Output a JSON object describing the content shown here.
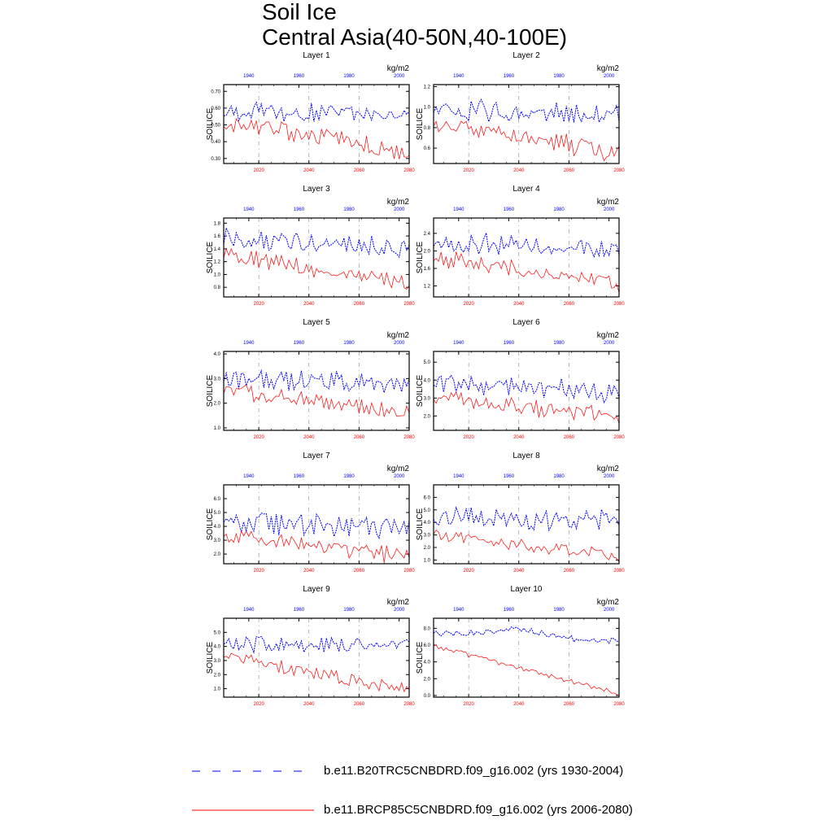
{
  "figure": {
    "title_line1": "Soil Ice",
    "title_line2": "Central Asia(40-50N,40-100E)"
  },
  "legend": [
    {
      "label": "b.e11.B20TRC5CNBDRD.f09_g16.002 (yrs 1930-2004)",
      "color": "#0000ff",
      "style": "dashed"
    },
    {
      "label": "b.e11.BRCP85C5CNBDRD.f09_g16.002 (yrs 2006-2080)",
      "color": "#ff0000",
      "style": "solid"
    }
  ],
  "colors": {
    "historical": "#0000ff",
    "future": "#ff0000",
    "refline": "#888888"
  },
  "chart_data": [
    {
      "type": "line",
      "title": "Layer 1",
      "ylabel": "SOILICE",
      "units": "kg/m2",
      "ylim": [
        0.27,
        0.74
      ],
      "yticks": [
        "0.30",
        "0.40",
        "0.50",
        "0.60",
        "0.70"
      ],
      "top_axis_label_years": [
        "1940",
        "1960",
        "1980",
        "2000"
      ],
      "top_axis_xlim": [
        1930,
        2004
      ],
      "bottom_axis_label_years": [
        "2020",
        "2040",
        "2060",
        "2080"
      ],
      "bottom_axis_xlim": [
        2006,
        2080
      ],
      "series": [
        {
          "name": "b.e11.B20TRC5CNBDRD.f09_g16.002",
          "start": 1930,
          "end": 2004,
          "level_start": 0.58,
          "level_end": 0.56,
          "variability": 0.05
        },
        {
          "name": "b.e11.BRCP85C5CNBDRD.f09_g16.002",
          "start": 2006,
          "end": 2080,
          "level_start": 0.52,
          "level_end": 0.34,
          "variability": 0.05
        }
      ]
    },
    {
      "type": "line",
      "title": "Layer 2",
      "ylabel": "SOILICE",
      "units": "kg/m2",
      "ylim": [
        0.45,
        1.22
      ],
      "yticks": [
        "0.6",
        "0.8",
        "1.0",
        "1.2"
      ],
      "top_axis_label_years": [
        "1940",
        "1960",
        "1980",
        "2000"
      ],
      "top_axis_xlim": [
        1930,
        2004
      ],
      "bottom_axis_label_years": [
        "2020",
        "2040",
        "2060",
        "2080"
      ],
      "bottom_axis_xlim": [
        2006,
        2080
      ],
      "series": [
        {
          "name": "b.e11.B20TRC5CNBDRD.f09_g16.002",
          "start": 1930,
          "end": 2004,
          "level_start": 0.98,
          "level_end": 0.92,
          "variability": 0.09
        },
        {
          "name": "b.e11.BRCP85C5CNBDRD.f09_g16.002",
          "start": 2006,
          "end": 2080,
          "level_start": 0.85,
          "level_end": 0.55,
          "variability": 0.08
        }
      ]
    },
    {
      "type": "line",
      "title": "Layer 3",
      "ylabel": "SOILICE",
      "units": "kg/m2",
      "ylim": [
        0.65,
        1.88
      ],
      "yticks": [
        "0.8",
        "1.0",
        "1.2",
        "1.4",
        "1.6",
        "1.8"
      ],
      "top_axis_label_years": [
        "1940",
        "1960",
        "1980",
        "2000"
      ],
      "top_axis_xlim": [
        1930,
        2004
      ],
      "bottom_axis_label_years": [
        "2020",
        "2040",
        "2060",
        "2080"
      ],
      "bottom_axis_xlim": [
        2006,
        2080
      ],
      "series": [
        {
          "name": "b.e11.B20TRC5CNBDRD.f09_g16.002",
          "start": 1930,
          "end": 2004,
          "level_start": 1.55,
          "level_end": 1.42,
          "variability": 0.14
        },
        {
          "name": "b.e11.BRCP85C5CNBDRD.f09_g16.002",
          "start": 2006,
          "end": 2080,
          "level_start": 1.3,
          "level_end": 0.85,
          "variability": 0.12
        }
      ]
    },
    {
      "type": "line",
      "title": "Layer 4",
      "ylabel": "SOILICE",
      "units": "kg/m2",
      "ylim": [
        0.95,
        2.75
      ],
      "yticks": [
        "1.2",
        "1.6",
        "2.0",
        "2.4"
      ],
      "top_axis_label_years": [
        "1940",
        "1960",
        "1980",
        "2000"
      ],
      "top_axis_xlim": [
        1930,
        2004
      ],
      "bottom_axis_label_years": [
        "2020",
        "2040",
        "2060",
        "2080"
      ],
      "bottom_axis_xlim": [
        2006,
        2080
      ],
      "series": [
        {
          "name": "b.e11.B20TRC5CNBDRD.f09_g16.002",
          "start": 1930,
          "end": 2004,
          "level_start": 2.2,
          "level_end": 2.0,
          "variability": 0.2
        },
        {
          "name": "b.e11.BRCP85C5CNBDRD.f09_g16.002",
          "start": 2006,
          "end": 2080,
          "level_start": 1.85,
          "level_end": 1.25,
          "variability": 0.16
        }
      ]
    },
    {
      "type": "line",
      "title": "Layer 5",
      "ylabel": "SOILICE",
      "units": "kg/m2",
      "ylim": [
        0.9,
        4.1
      ],
      "yticks": [
        "1.0",
        "2.0",
        "3.0",
        "4.0"
      ],
      "top_axis_label_years": [
        "1940",
        "1960",
        "1980",
        "2000"
      ],
      "top_axis_xlim": [
        1930,
        2004
      ],
      "bottom_axis_label_years": [
        "2020",
        "2040",
        "2060",
        "2080"
      ],
      "bottom_axis_xlim": [
        2006,
        2080
      ],
      "series": [
        {
          "name": "b.e11.B20TRC5CNBDRD.f09_g16.002",
          "start": 1930,
          "end": 2004,
          "level_start": 3.0,
          "level_end": 2.8,
          "variability": 0.35
        },
        {
          "name": "b.e11.BRCP85C5CNBDRD.f09_g16.002",
          "start": 2006,
          "end": 2080,
          "level_start": 2.5,
          "level_end": 1.6,
          "variability": 0.3
        }
      ]
    },
    {
      "type": "line",
      "title": "Layer 6",
      "ylabel": "SOILICE",
      "units": "kg/m2",
      "ylim": [
        1.2,
        5.6
      ],
      "yticks": [
        "2.0",
        "3.0",
        "4.0",
        "5.0"
      ],
      "top_axis_label_years": [
        "1940",
        "1960",
        "1980",
        "2000"
      ],
      "top_axis_xlim": [
        1930,
        2004
      ],
      "bottom_axis_label_years": [
        "2020",
        "2040",
        "2060",
        "2080"
      ],
      "bottom_axis_xlim": [
        2006,
        2080
      ],
      "series": [
        {
          "name": "b.e11.B20TRC5CNBDRD.f09_g16.002",
          "start": 1930,
          "end": 2004,
          "level_start": 3.8,
          "level_end": 3.3,
          "variability": 0.5
        },
        {
          "name": "b.e11.BRCP85C5CNBDRD.f09_g16.002",
          "start": 2006,
          "end": 2080,
          "level_start": 3.0,
          "level_end": 2.0,
          "variability": 0.4
        }
      ]
    },
    {
      "type": "line",
      "title": "Layer 7",
      "ylabel": "SOILICE",
      "units": "kg/m2",
      "ylim": [
        1.3,
        7.0
      ],
      "yticks": [
        "2.0",
        "3.0",
        "4.0",
        "5.0",
        "6.0"
      ],
      "top_axis_label_years": [
        "1940",
        "1960",
        "1980",
        "2000"
      ],
      "top_axis_xlim": [
        1930,
        2004
      ],
      "bottom_axis_label_years": [
        "2020",
        "2040",
        "2060",
        "2080"
      ],
      "bottom_axis_xlim": [
        2006,
        2080
      ],
      "series": [
        {
          "name": "b.e11.B20TRC5CNBDRD.f09_g16.002",
          "start": 1930,
          "end": 2004,
          "level_start": 4.3,
          "level_end": 3.9,
          "variability": 0.7
        },
        {
          "name": "b.e11.BRCP85C5CNBDRD.f09_g16.002",
          "start": 2006,
          "end": 2080,
          "level_start": 3.3,
          "level_end": 1.8,
          "variability": 0.5
        }
      ]
    },
    {
      "type": "line",
      "title": "Layer 8",
      "ylabel": "SOILICE",
      "units": "kg/m2",
      "ylim": [
        0.7,
        7.0
      ],
      "yticks": [
        "1.0",
        "2.0",
        "3.0",
        "4.0",
        "5.0",
        "6.0"
      ],
      "top_axis_label_years": [
        "1940",
        "1960",
        "1980",
        "2000"
      ],
      "top_axis_xlim": [
        1930,
        2004
      ],
      "bottom_axis_label_years": [
        "2020",
        "2040",
        "2060",
        "2080"
      ],
      "bottom_axis_xlim": [
        2006,
        2080
      ],
      "series": [
        {
          "name": "b.e11.B20TRC5CNBDRD.f09_g16.002",
          "start": 1930,
          "end": 2004,
          "level_start": 4.4,
          "level_end": 4.0,
          "variability": 0.8
        },
        {
          "name": "b.e11.BRCP85C5CNBDRD.f09_g16.002",
          "start": 2006,
          "end": 2080,
          "level_start": 3.0,
          "level_end": 1.3,
          "variability": 0.4
        }
      ]
    },
    {
      "type": "line",
      "title": "Layer 9",
      "ylabel": "SOILICE",
      "units": "kg/m2",
      "ylim": [
        0.4,
        6.0
      ],
      "yticks": [
        "1.0",
        "2.0",
        "3.0",
        "4.0",
        "5.0"
      ],
      "top_axis_label_years": [
        "1940",
        "1960",
        "1980",
        "2000"
      ],
      "top_axis_xlim": [
        1930,
        2004
      ],
      "bottom_axis_label_years": [
        "2020",
        "2040",
        "2060",
        "2080"
      ],
      "bottom_axis_xlim": [
        2006,
        2080
      ],
      "series": [
        {
          "name": "b.e11.B20TRC5CNBDRD.f09_g16.002",
          "start": 1930,
          "end": 2004,
          "level_start": 4.2,
          "level_end": 4.0,
          "variability": 0.5
        },
        {
          "name": "b.e11.BRCP85C5CNBDRD.f09_g16.002",
          "start": 2006,
          "end": 2080,
          "level_start": 3.3,
          "level_end": 0.9,
          "variability": 0.4
        }
      ]
    },
    {
      "type": "line",
      "title": "Layer 10",
      "ylabel": "SOILICE",
      "units": "kg/m2",
      "ylim": [
        -0.2,
        9.2
      ],
      "yticks": [
        "0.0",
        "2.0",
        "4.0",
        "6.0",
        "8.0"
      ],
      "top_axis_label_years": [
        "1940",
        "1960",
        "1980",
        "2000"
      ],
      "top_axis_xlim": [
        1930,
        2004
      ],
      "bottom_axis_label_years": [
        "2020",
        "2040",
        "2060",
        "2080"
      ],
      "bottom_axis_xlim": [
        2006,
        2080
      ],
      "series": [
        {
          "name": "b.e11.B20TRC5CNBDRD.f09_g16.002",
          "start": 1930,
          "end": 2004,
          "level_start": 7.4,
          "level_end": 6.5,
          "variability": 0.35,
          "bump": 1.0
        },
        {
          "name": "b.e11.BRCP85C5CNBDRD.f09_g16.002",
          "start": 2006,
          "end": 2080,
          "level_start": 5.9,
          "level_end": 0.2,
          "variability": 0.25
        }
      ]
    }
  ]
}
